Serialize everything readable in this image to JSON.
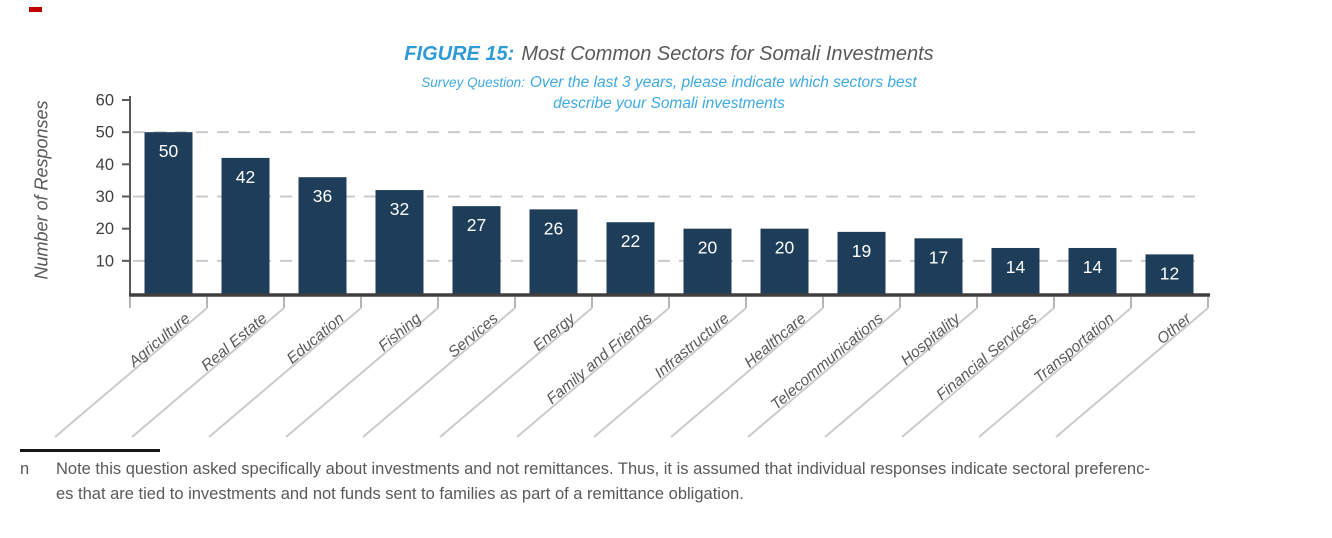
{
  "annotation": {
    "red_mark_color": "#c00000"
  },
  "title": {
    "figure_label": "FIGURE 15:",
    "text": "Most Common Sectors for Somali Investments"
  },
  "subtitle": {
    "label": "Survey Question:",
    "line1_rest": "Over the last 3 years, please indicate which sectors best",
    "line2": "describe your Somali investments"
  },
  "chart_data": {
    "type": "bar",
    "title": "FIGURE 15: Most Common Sectors for Somali Investments",
    "subtitle": "Survey Question: Over the last 3 years, please indicate which sectors best describe your Somali investments",
    "categories": [
      "Agriculture",
      "Real Estate",
      "Education",
      "Fishing",
      "Services",
      "Energy",
      "Family and Friends",
      "Infrastructure",
      "Healthcare",
      "Telecommunications",
      "Hospitality",
      "Financial Services",
      "Transportation",
      "Other"
    ],
    "values": [
      50,
      42,
      36,
      32,
      27,
      26,
      22,
      20,
      20,
      19,
      17,
      14,
      14,
      12
    ],
    "xlabel": "",
    "ylabel": "Number of Responses",
    "yticks": [
      10,
      20,
      30,
      40,
      50,
      60
    ],
    "gridlines_at": [
      10,
      30,
      50
    ],
    "ylim": [
      0,
      60
    ],
    "grid_on": true,
    "legend_position": "none",
    "bar_color": "#1e3d58",
    "value_label_color": "#ffffff",
    "axis_color": "#595959",
    "baseline_color": "#3f3f3f",
    "gridline_color": "#cbcbcb",
    "tick_label_color": "#404040",
    "category_label_color": "#595959"
  },
  "footnote": {
    "marker": "n",
    "lines": [
      "Note this question asked specifically about investments and not remittances. Thus, it is assumed that individual responses indicate sectoral preferenc-",
      "es that are tied to investments and not funds sent to families as part of a remittance obligation."
    ]
  }
}
